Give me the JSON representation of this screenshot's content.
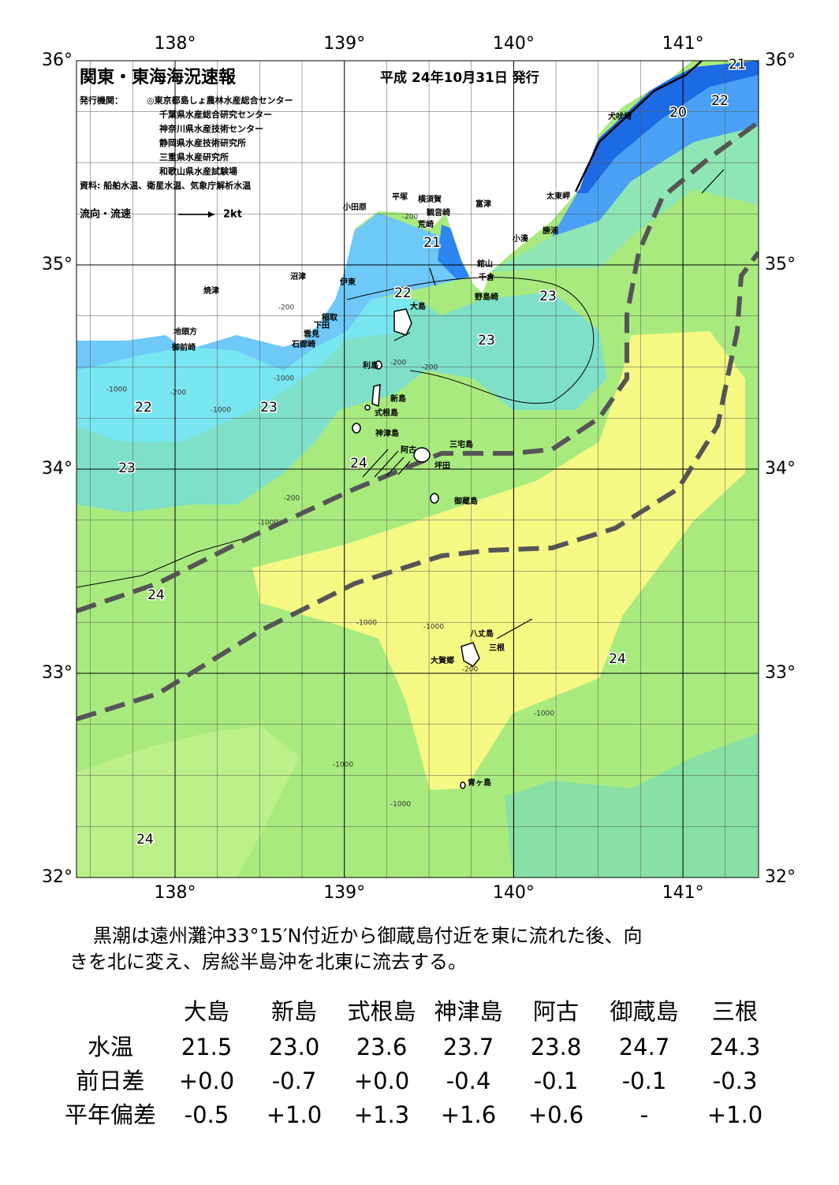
{
  "header": {
    "title": "関東・東海海況速報",
    "date": "平成 24年10月31日 発行",
    "publisher_label": "発行機関：",
    "publishers": [
      "◎東京都島しょ農林水産総合センター",
      "千葉県水産総合研究センター",
      "神奈川県水産技術センター",
      "静岡県水産技術研究所",
      "三重県水産研究所",
      "和歌山県水産試験場"
    ],
    "source": "資料: 船舶水温、衛星水温、気象庁解析水温",
    "flow_label": "流向・流速",
    "flow_scale": "2kt"
  },
  "map": {
    "lon_ticks": [
      {
        "value": 138,
        "label": "138°"
      },
      {
        "value": 139,
        "label": "139°"
      },
      {
        "value": 140,
        "label": "140°"
      },
      {
        "value": 141,
        "label": "141°"
      }
    ],
    "lat_ticks": [
      {
        "value": 36,
        "label": "36°"
      },
      {
        "value": 35,
        "label": "35°"
      },
      {
        "value": 34,
        "label": "34°"
      },
      {
        "value": 33,
        "label": "33°"
      },
      {
        "value": 32,
        "label": "32°"
      }
    ],
    "places": [
      "犬吠埼",
      "太東岬",
      "勝浦",
      "小湊",
      "富津",
      "館山",
      "千倉",
      "野島崎",
      "平塚",
      "横須賀",
      "観音崎",
      "荒崎",
      "小田原",
      "沼津",
      "伊東",
      "焼津",
      "稲取",
      "下田",
      "雲見",
      "石廊崎",
      "地頭方",
      "御前崎",
      "大島",
      "利島",
      "新島",
      "式根島",
      "神津島",
      "三宅島",
      "阿古",
      "坪田",
      "御蔵島",
      "八丈島",
      "三根",
      "大賀郷",
      "青ヶ島"
    ],
    "contour_labels": [
      "21",
      "22",
      "20",
      "21",
      "22",
      "23",
      "23",
      "22",
      "23",
      "24",
      "23",
      "24",
      "24",
      "24"
    ],
    "depth_labels": [
      "-200",
      "-200",
      "-200",
      "-200",
      "-200",
      "-200",
      "-1000",
      "-1000",
      "-1000",
      "-1000",
      "-1000",
      "-1000",
      "-1000",
      "-1000",
      "-200",
      "-1000"
    ]
  },
  "summary": [
    "黒潮は遠州灘沖33°15′N付近から御蔵島付近を東に流れた後、向",
    "きを北に変え、房総半島沖を北東に流去する。"
  ],
  "table": {
    "columns": [
      "大島",
      "新島",
      "式根島",
      "神津島",
      "阿古",
      "御蔵島",
      "三根"
    ],
    "rows": [
      {
        "label": "水温",
        "values": [
          "21.5",
          "23.0",
          "23.6",
          "23.7",
          "23.8",
          "24.7",
          "24.3"
        ]
      },
      {
        "label": "前日差",
        "values": [
          "+0.0",
          "-0.7",
          "+0.0",
          "-0.4",
          "-0.1",
          "-0.1",
          "-0.3"
        ]
      },
      {
        "label": "平年偏差",
        "values": [
          "-0.5",
          "+1.0",
          "+1.3",
          "+1.6",
          "+0.6",
          "-",
          "+1.0"
        ]
      }
    ]
  }
}
